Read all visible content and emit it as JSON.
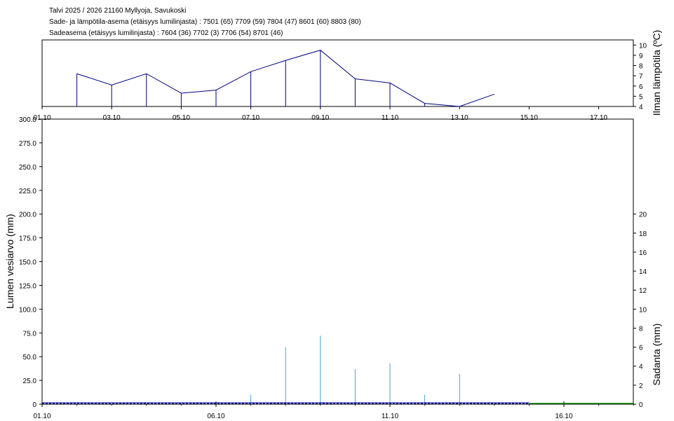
{
  "header": {
    "line1": "Talvi 2025 / 2026 21160 Myllyoja, Savukoski",
    "line2": "Sade- ja lämpötila-asema (etäisyys lumilinjasta) :  7501 (65) 7709 (59) 7804 (47) 8601 (60) 8803 (80)",
    "line3": "Sadeasema (etäisyys lumilinjasta) :  7604 (36) 7702 (3) 7706 (54) 8701 (46)"
  },
  "colors": {
    "temperature_line": "#000080",
    "precipitation_bar": "#4a9fd5",
    "snow_line": "#0000a0",
    "snow_line_future": "#008000",
    "axis": "#000000"
  },
  "chart_data": [
    {
      "type": "line",
      "name": "temperature",
      "ylabel": "Ilman lämpötila (ºC)",
      "x_ticks": [
        "01.10",
        "03.10",
        "05.10",
        "07.10",
        "09.10",
        "11.10",
        "13.10",
        "15.10",
        "17.10"
      ],
      "y_ticks": [
        "4",
        "5",
        "6",
        "7",
        "8",
        "9",
        "10"
      ],
      "ylim": [
        4,
        10.5
      ],
      "x": [
        "02.10",
        "03.10",
        "04.10",
        "05.10",
        "06.10",
        "07.10",
        "08.10",
        "09.10",
        "10.10",
        "11.10",
        "12.10",
        "13.10",
        "14.10"
      ],
      "values": [
        7.2,
        6.1,
        7.2,
        5.3,
        5.6,
        7.4,
        8.5,
        9.5,
        6.7,
        6.3,
        4.3,
        4.0,
        5.2
      ],
      "stems": true
    },
    {
      "type": "bar",
      "name": "precipitation",
      "ylabel": "Sadanta (mm)",
      "y_ticks": [
        "0",
        "2",
        "4",
        "6",
        "8",
        "10",
        "12",
        "14",
        "16",
        "18",
        "20"
      ],
      "ylim": [
        0,
        30
      ],
      "x": [
        "07.10",
        "08.10",
        "09.10",
        "10.10",
        "11.10",
        "12.10",
        "13.10"
      ],
      "values": [
        1.0,
        6.0,
        7.2,
        3.7,
        4.3,
        1.0,
        3.2
      ]
    },
    {
      "type": "line",
      "name": "snow_water_equivalent",
      "ylabel": "Lumen vesiarvo (mm)",
      "x_ticks": [
        "01.10",
        "06.10",
        "11.10",
        "16.10"
      ],
      "y_ticks": [
        "0",
        "25.0",
        "50.0",
        "75.0",
        "100.0",
        "125.0",
        "150.0",
        "175.0",
        "200.0",
        "225.0",
        "250.0",
        "275.0",
        "300.0"
      ],
      "ylim": [
        0,
        300
      ],
      "x": [
        "01.10",
        "15.10",
        "18.10"
      ],
      "values": [
        0,
        0,
        0
      ]
    }
  ]
}
